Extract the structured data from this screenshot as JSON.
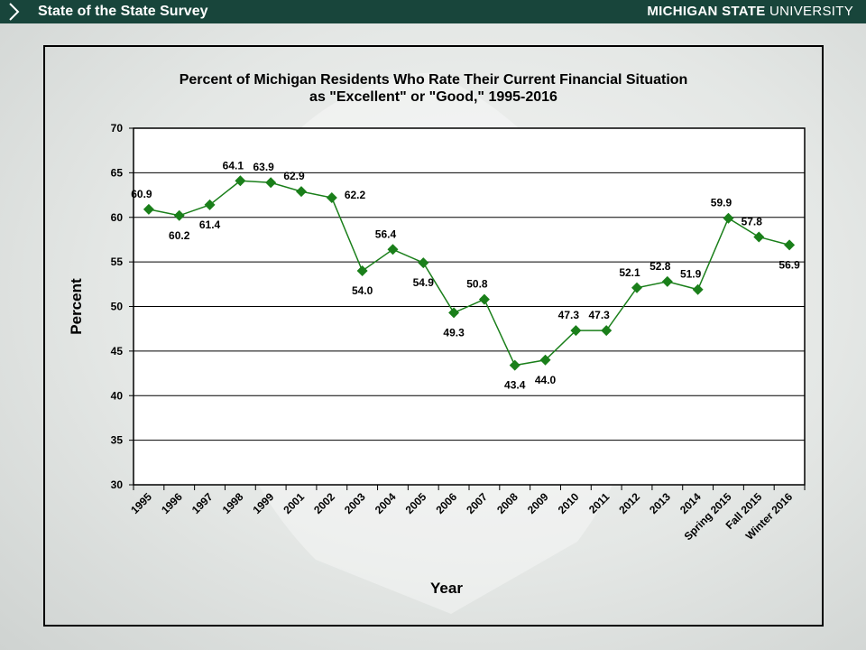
{
  "header": {
    "survey_title": "State of the State Survey",
    "brand_strong": "MICHIGAN STATE",
    "brand_light": " UNIVERSITY",
    "chevron_icon": "chevron-right-icon",
    "bar_color": "#18453b"
  },
  "chart_data": {
    "type": "line",
    "title_line1": "Percent of Michigan Residents Who Rate Their Current Financial Situation",
    "title_line2": "as \"Excellent\" or \"Good,\" 1995-2016",
    "xlabel": "Year",
    "ylabel": "Percent",
    "ylim": [
      30,
      70
    ],
    "yticks": [
      30,
      35,
      40,
      45,
      50,
      55,
      60,
      65,
      70
    ],
    "grid": "horizontal",
    "categories": [
      "1995",
      "1996",
      "1997",
      "1998",
      "1999",
      "2001",
      "2002",
      "2003",
      "2004",
      "2005",
      "2006",
      "2007",
      "2008",
      "2009",
      "2010",
      "2011",
      "2012",
      "2013",
      "2014",
      "Spring 2015",
      "Fall 2015",
      "Winter 2016"
    ],
    "series": [
      {
        "color": "#1a7f1a",
        "marker": "diamond",
        "values": [
          60.9,
          60.2,
          61.4,
          64.1,
          63.9,
          62.9,
          62.2,
          54.0,
          56.4,
          54.9,
          49.3,
          50.8,
          43.4,
          44.0,
          47.3,
          47.3,
          52.1,
          52.8,
          51.9,
          59.9,
          57.8,
          56.9
        ],
        "labels": [
          "60.9",
          "60.2",
          "61.4",
          "64.1",
          "63.9",
          "62.9",
          "62.2",
          "54.0",
          "56.4",
          "54.9",
          "49.3",
          "50.8",
          "43.4",
          "44.0",
          "47.3",
          "47.3",
          "52.1",
          "52.8",
          "51.9",
          "59.9",
          "57.8",
          "56.9"
        ]
      }
    ]
  }
}
